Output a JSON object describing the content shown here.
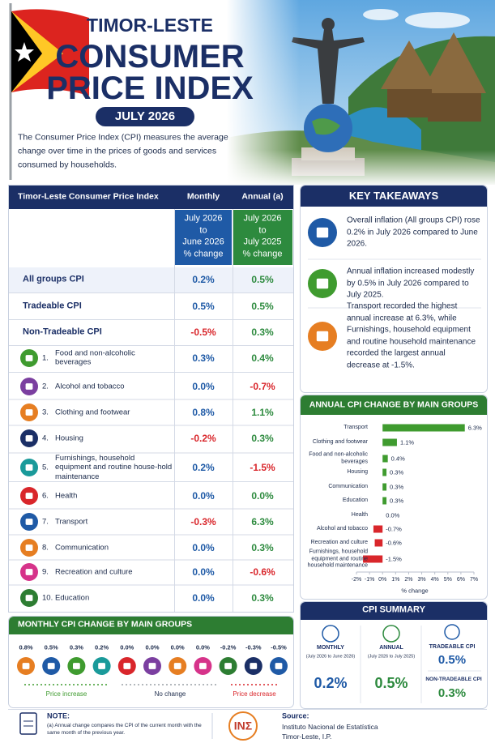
{
  "header": {
    "country": "TIMOR-LESTE",
    "title": [
      "CONSUMER",
      "PRICE INDEX"
    ],
    "period": "JULY 2026",
    "description": "The Consumer Price Index (CPI) measures the average change over time in the prices of goods and services consumed by households."
  },
  "table": {
    "title": "Timor-Leste Consumer Price Index",
    "monthly_header": "Monthly",
    "annual_header": "Annual (a)",
    "monthly_period": [
      "July 2026",
      "to",
      "June 2026",
      "% change"
    ],
    "annual_period": [
      "July 2026",
      "to",
      "July 2025",
      "% change"
    ],
    "summary_rows": [
      [
        "All groups CPI",
        "0.2%",
        "0.5%"
      ],
      [
        "Tradeable CPI",
        "0.5%",
        "0.5%"
      ],
      [
        "Non-Tradeable CPI",
        "-0.5%",
        "0.3%"
      ]
    ],
    "items": [
      [
        "1.",
        "Food and non-alcoholic beverages",
        "0.3%",
        "0.4%"
      ],
      [
        "2.",
        "Alcohol and tobacco",
        "0.0%",
        "-0.7%"
      ],
      [
        "3.",
        "Clothing and footwear",
        "0.8%",
        "1.1%"
      ],
      [
        "4.",
        "Housing",
        "-0.2%",
        "0.3%"
      ],
      [
        "5.",
        "Furnishings, household equipment and routine house-hold maintenance",
        "0.2%",
        "-1.5%"
      ],
      [
        "6.",
        "Health",
        "0.0%",
        "0.0%"
      ],
      [
        "7.",
        "Transport",
        "-0.3%",
        "6.3%"
      ],
      [
        "8.",
        "Communication",
        "0.0%",
        "0.3%"
      ],
      [
        "9.",
        "Recreation and culture",
        "0.0%",
        "-0.6%"
      ],
      [
        "10.",
        "Education",
        "0.0%",
        "0.3%"
      ]
    ]
  },
  "key_takeaways": {
    "title": "KEY TAKEAWAYS",
    "items": [
      "Overall inflation (All groups CPI) rose 0.2% in July 2026 compared to June 2026.",
      "Annual inflation increased modestly by 0.5% in July 2026 compared to July 2025.",
      "Transport recorded the highest annual increase at 6.3%, while Furnishings, household equipment and routine household maintenance recorded the largest annual decrease at -1.5%."
    ]
  },
  "chart_data": {
    "type": "bar",
    "orientation": "horizontal",
    "title": "ANNUAL CPI CHANGE BY MAIN GROUPS",
    "categories": [
      "Transport",
      "Clothing and footwear",
      "Food and non-alcoholic beverages",
      "Housing",
      "Communication",
      "Education",
      "Health",
      "Alcohol and tobacco",
      "Recreation and culture",
      "Furnishings, household equipment and routine household maintenance"
    ],
    "values": [
      6.3,
      1.1,
      0.4,
      0.3,
      0.3,
      0.3,
      0,
      -0.7,
      -0.6,
      -1.5
    ],
    "value_labels": [
      "6.3%",
      "1.1%",
      "0.4%",
      "0.3%",
      "0.3%",
      "0.3%",
      "0.0%",
      "-0.7%",
      "-0.6%",
      "-1.5%"
    ],
    "positive_color": "#3f9b2f",
    "negative_color": "#d9262b",
    "xlim": [
      -2,
      7
    ],
    "xticks": [
      {
        "value": -2,
        "label": "-2%"
      },
      {
        "value": -1,
        "label": "-1%"
      },
      {
        "value": 0,
        "label": "0%"
      },
      {
        "value": 1,
        "label": "1%"
      },
      {
        "value": 2,
        "label": "2%"
      },
      {
        "value": 3,
        "label": "3%"
      },
      {
        "value": 4,
        "label": "4%"
      },
      {
        "value": 5,
        "label": "5%"
      },
      {
        "value": 6,
        "label": "6%"
      },
      {
        "value": 7,
        "label": "7%"
      }
    ],
    "xlabel": "% change"
  },
  "monthly_strip": {
    "title": "MONTHLY CPI CHANGE BY MAIN GROUPS",
    "values": [
      "0.8%",
      "0.5%",
      "0.3%",
      "0.2%",
      "0.0%",
      "0.0%",
      "0.0%",
      "0.0%",
      "-0.2%",
      "-0.3%",
      "-0.5%"
    ],
    "legend": [
      "Price increase",
      "No change",
      "Price decrease"
    ]
  },
  "cpi_summary": {
    "title": "CPI SUMMARY",
    "monthly": {
      "label": "MONTHLY",
      "period": "(July 2026 to June 2026)",
      "value": "0.2%"
    },
    "annual": {
      "label": "ANNUAL",
      "period": "(July 2026 to July 2025)",
      "value": "0.5%"
    },
    "tradeable": {
      "label": "TRADEABLE CPI",
      "value": "0.5%"
    },
    "non_tradeable": {
      "label": "NON-TRADEABLE CPI",
      "value": "0.3%"
    }
  },
  "footer": {
    "note_label": "NOTE:",
    "note": "(a) Annual change compares the CPI of the current month with the same month of the previous year.",
    "logo": "INΣ",
    "source_label": "Source:",
    "source": [
      "Instituto Nacional de Estatística",
      "Timor-Leste, I.P."
    ]
  }
}
